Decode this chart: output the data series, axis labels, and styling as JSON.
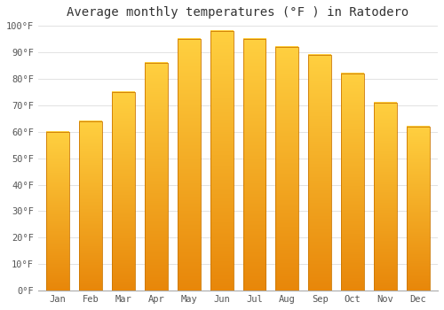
{
  "title": "Average monthly temperatures (°F ) in Ratodero",
  "months": [
    "Jan",
    "Feb",
    "Mar",
    "Apr",
    "May",
    "Jun",
    "Jul",
    "Aug",
    "Sep",
    "Oct",
    "Nov",
    "Dec"
  ],
  "values": [
    60,
    64,
    75,
    86,
    95,
    98,
    95,
    92,
    89,
    82,
    71,
    62
  ],
  "bar_color_bottom": "#E8870A",
  "bar_color_top": "#FFD040",
  "bar_edge_color": "#CC7700",
  "background_color": "#FFFFFF",
  "grid_color": "#DDDDDD",
  "ylim": [
    0,
    100
  ],
  "yticks": [
    0,
    10,
    20,
    30,
    40,
    50,
    60,
    70,
    80,
    90,
    100
  ],
  "ytick_labels": [
    "0°F",
    "10°F",
    "20°F",
    "30°F",
    "40°F",
    "50°F",
    "60°F",
    "70°F",
    "80°F",
    "90°F",
    "100°F"
  ],
  "title_fontsize": 10,
  "tick_fontsize": 7.5,
  "font_family": "monospace",
  "bar_width": 0.7
}
